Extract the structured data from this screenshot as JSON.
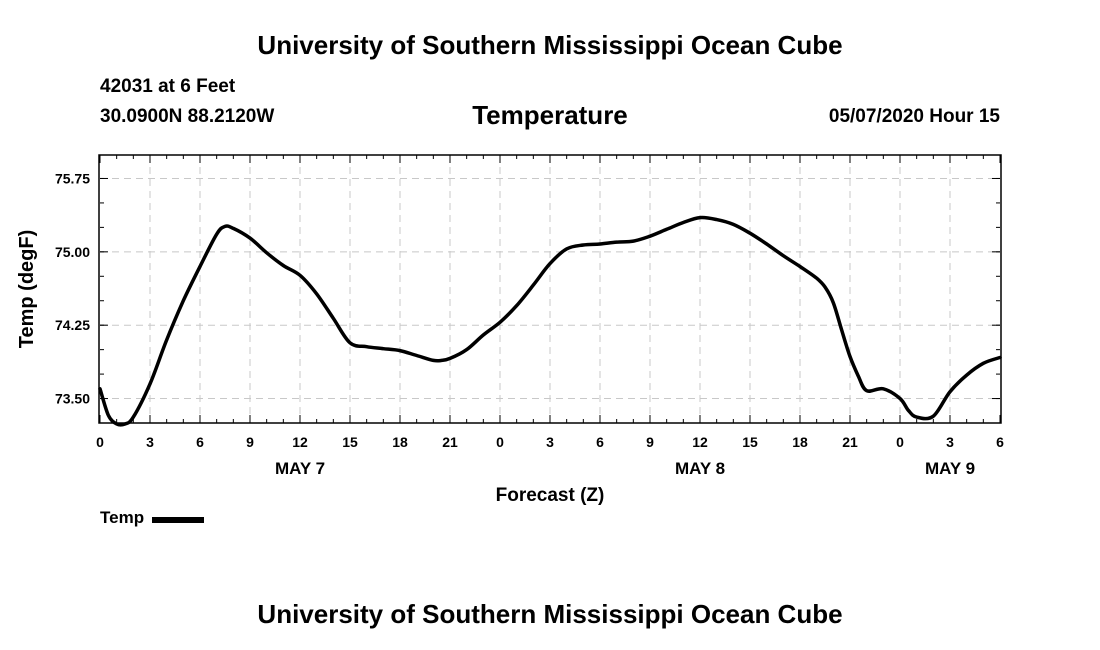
{
  "header": {
    "title": "University of Southern Mississippi Ocean Cube"
  },
  "info": {
    "station": "42031 at 6 Feet",
    "coords": "30.0900N 88.2120W",
    "datetime": "05/07/2020 Hour 15"
  },
  "footer": {
    "title": "University of Southern Mississippi Ocean Cube"
  },
  "legend": {
    "label": "Temp"
  },
  "colors": {
    "line": "#000000",
    "grid": "#c8c8c8"
  },
  "chart_data": {
    "type": "line",
    "title": "Temperature",
    "xlabel": "Forecast (Z)",
    "ylabel": "Temp (degF)",
    "xlim": [
      0,
      54
    ],
    "ylim": [
      73.25,
      75.99
    ],
    "grid": true,
    "legend_position": "bottom-left",
    "x_ticks": [
      {
        "x": 0,
        "label": "0"
      },
      {
        "x": 3,
        "label": "3"
      },
      {
        "x": 6,
        "label": "6"
      },
      {
        "x": 9,
        "label": "9"
      },
      {
        "x": 12,
        "label": "12"
      },
      {
        "x": 15,
        "label": "15"
      },
      {
        "x": 18,
        "label": "18"
      },
      {
        "x": 21,
        "label": "21"
      },
      {
        "x": 24,
        "label": "0"
      },
      {
        "x": 27,
        "label": "3"
      },
      {
        "x": 30,
        "label": "6"
      },
      {
        "x": 33,
        "label": "9"
      },
      {
        "x": 36,
        "label": "12"
      },
      {
        "x": 39,
        "label": "15"
      },
      {
        "x": 42,
        "label": "18"
      },
      {
        "x": 45,
        "label": "21"
      },
      {
        "x": 48,
        "label": "0"
      },
      {
        "x": 51,
        "label": "3"
      },
      {
        "x": 54,
        "label": "6"
      }
    ],
    "day_labels": [
      {
        "x": 12,
        "label": "MAY 7"
      },
      {
        "x": 36,
        "label": "MAY 8"
      },
      {
        "x": 51,
        "label": "MAY 9"
      }
    ],
    "y_ticks": [
      {
        "y": 73.5,
        "label": "73.50"
      },
      {
        "y": 74.25,
        "label": "74.25"
      },
      {
        "y": 75.0,
        "label": "75.00"
      },
      {
        "y": 75.75,
        "label": "75.75"
      }
    ],
    "series": [
      {
        "name": "Temp",
        "x": [
          0,
          0.5,
          1,
          1.5,
          2,
          3,
          4,
          5,
          6,
          7,
          7.5,
          8,
          9,
          10,
          11,
          12,
          13,
          14,
          15,
          16,
          17,
          18,
          19,
          20,
          20.5,
          21,
          22,
          23,
          24,
          25,
          26,
          27,
          28,
          29,
          30,
          31,
          32,
          33,
          34,
          35,
          36,
          37,
          38,
          39,
          40,
          41,
          42,
          43,
          43.5,
          44,
          44.5,
          45,
          45.5,
          46,
          47,
          48,
          48.5,
          49,
          50,
          51,
          52,
          53,
          54
        ],
        "values": [
          73.6,
          73.33,
          73.24,
          73.24,
          73.31,
          73.65,
          74.1,
          74.5,
          74.85,
          75.18,
          75.26,
          75.24,
          75.14,
          74.99,
          74.86,
          74.76,
          74.57,
          74.32,
          74.07,
          74.03,
          74.01,
          73.99,
          73.94,
          73.89,
          73.89,
          73.91,
          74.0,
          74.15,
          74.28,
          74.45,
          74.66,
          74.88,
          75.03,
          75.07,
          75.08,
          75.1,
          75.11,
          75.16,
          75.23,
          75.3,
          75.35,
          75.33,
          75.28,
          75.19,
          75.08,
          74.96,
          74.85,
          74.73,
          74.64,
          74.48,
          74.2,
          73.93,
          73.73,
          73.58,
          73.6,
          73.5,
          73.38,
          73.31,
          73.32,
          73.57,
          73.74,
          73.86,
          73.92
        ]
      }
    ]
  }
}
